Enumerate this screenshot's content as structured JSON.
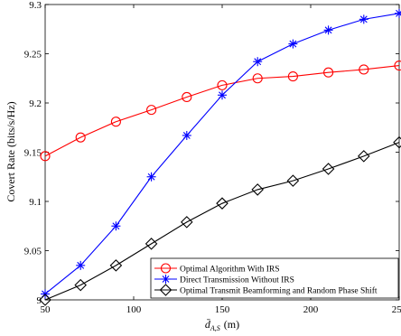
{
  "chart_data": {
    "type": "line",
    "title": "",
    "xlabel_main": "d̄",
    "xlabel_sub": "A,S",
    "xlabel_unit": "(m)",
    "ylabel": "Covert Rate (bits/s/Hz)",
    "xlim": [
      50,
      250
    ],
    "ylim": [
      9.0,
      9.3
    ],
    "xticks": [
      50,
      100,
      150,
      200,
      250
    ],
    "xtick_labels": [
      "50",
      "100",
      "150",
      "200",
      "250"
    ],
    "yticks": [
      9.0,
      9.05,
      9.1,
      9.15,
      9.2,
      9.25,
      9.3
    ],
    "ytick_labels": [
      "9",
      "9.05",
      "9.1",
      "9.15",
      "9.2",
      "9.25",
      "9.3"
    ],
    "grid": false,
    "legend_position": "bottom-right",
    "x": [
      50,
      70,
      90,
      110,
      130,
      150,
      170,
      190,
      210,
      230,
      250
    ],
    "series": [
      {
        "name": "Optimal Algorithm With IRS",
        "color": "#ff0000",
        "marker": "circle",
        "values": [
          9.146,
          9.165,
          9.181,
          9.193,
          9.206,
          9.218,
          9.225,
          9.227,
          9.231,
          9.234,
          9.238
        ]
      },
      {
        "name": "Direct Transmission Without IRS",
        "color": "#0000ff",
        "marker": "asterisk",
        "values": [
          9.006,
          9.035,
          9.075,
          9.125,
          9.167,
          9.208,
          9.242,
          9.26,
          9.274,
          9.285,
          9.291
        ]
      },
      {
        "name": "Optimal Transmit Beamforming and Random Phase Shift",
        "color": "#000000",
        "marker": "diamond",
        "values": [
          9.0,
          9.015,
          9.035,
          9.057,
          9.079,
          9.098,
          9.112,
          9.121,
          9.133,
          9.146,
          9.16
        ]
      }
    ]
  }
}
